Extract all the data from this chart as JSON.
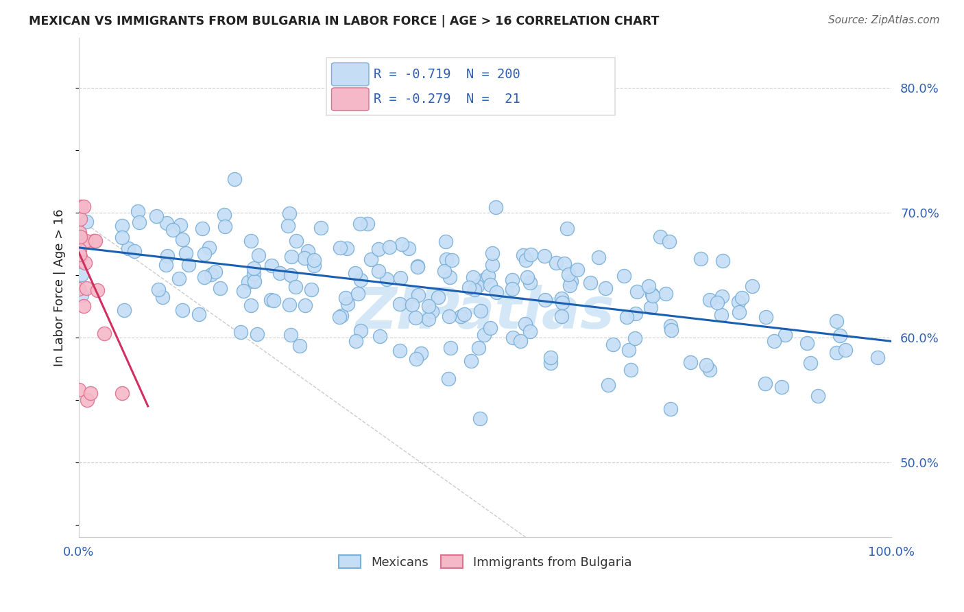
{
  "title": "MEXICAN VS IMMIGRANTS FROM BULGARIA IN LABOR FORCE | AGE > 16 CORRELATION CHART",
  "source": "Source: ZipAtlas.com",
  "ylabel": "In Labor Force | Age > 16",
  "right_yticks": [
    0.5,
    0.6,
    0.7,
    0.8
  ],
  "right_ytick_labels": [
    "50.0%",
    "60.0%",
    "70.0%",
    "80.0%"
  ],
  "ylim_min": 0.44,
  "ylim_max": 0.84,
  "xlim_min": 0.0,
  "xlim_max": 1.0,
  "legend_blue_r": "-0.719",
  "legend_blue_n": "200",
  "legend_pink_r": "-0.279",
  "legend_pink_n": "21",
  "legend_label_blue": "Mexicans",
  "legend_label_pink": "Immigrants from Bulgaria",
  "blue_line_x": [
    0.0,
    1.0
  ],
  "blue_line_y": [
    0.672,
    0.597
  ],
  "pink_line_x": [
    0.0,
    0.085
  ],
  "pink_line_y": [
    0.668,
    0.545
  ],
  "diag_line_x": [
    0.0,
    0.55
  ],
  "diag_line_y": [
    0.695,
    0.44
  ],
  "watermark": "ZIPatlas",
  "watermark_color": "#b8d8f0",
  "blue_dot_color": "#c5ddf5",
  "blue_dot_edge": "#7ab0d8",
  "pink_dot_color": "#f5b8c8",
  "pink_dot_edge": "#e07090",
  "blue_line_color": "#1a5fb0",
  "pink_line_color": "#d03060",
  "title_color": "#222222",
  "source_color": "#666666",
  "ylabel_color": "#222222",
  "tick_color": "#3060b0",
  "grid_color": "#cccccc",
  "spine_color": "#cccccc",
  "legend_box_color": "#dddddd",
  "blue_scatter_seed": 42,
  "pink_scatter_seed": 17,
  "n_blue": 200,
  "n_pink": 21
}
